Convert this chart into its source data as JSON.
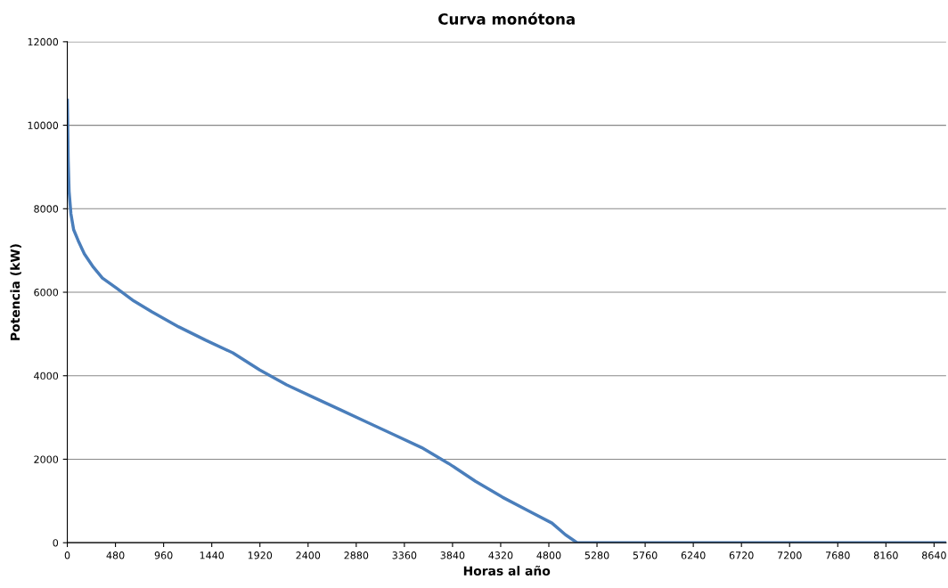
{
  "chart_data": {
    "type": "line",
    "title": "Curva monótona",
    "xlabel": "Horas al año",
    "ylabel": "Potencia (kW)",
    "x": [
      0,
      9,
      18,
      36,
      63,
      108,
      170,
      260,
      350,
      484,
      663,
      843,
      1111,
      1380,
      1649,
      1918,
      2187,
      2456,
      2725,
      2994,
      3262,
      3531,
      3800,
      4069,
      4338,
      4607,
      4831,
      4966,
      5082,
      8760
    ],
    "series": [
      {
        "color": "#4a7ebb",
        "values": [
          10600,
          9160,
          8410,
          7880,
          7500,
          7240,
          6920,
          6600,
          6340,
          6110,
          5790,
          5530,
          5170,
          4850,
          4550,
          4140,
          3780,
          3480,
          3180,
          2880,
          2580,
          2280,
          1900,
          1470,
          1090,
          750,
          470,
          190,
          0,
          0
        ]
      }
    ],
    "xlim": [
      0,
      8760
    ],
    "xticks": [
      0,
      480,
      960,
      1440,
      1920,
      2400,
      2880,
      3360,
      3840,
      4320,
      4800,
      5280,
      5760,
      6240,
      6720,
      7200,
      7680,
      8160,
      8640
    ],
    "ylim": [
      0,
      12000
    ],
    "yticks": [
      0,
      2000,
      4000,
      6000,
      8000,
      10000,
      12000
    ],
    "grid": "y",
    "legend": false,
    "marker": "none",
    "line_style": "solid"
  }
}
